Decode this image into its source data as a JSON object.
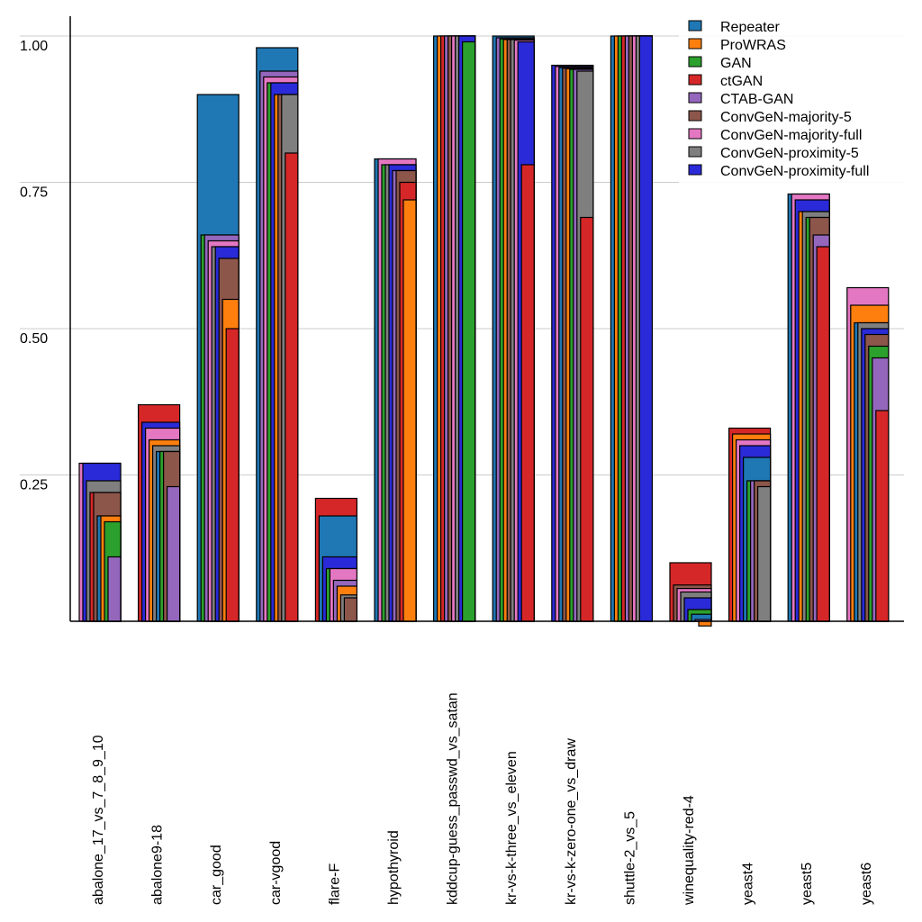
{
  "chart_data": {
    "type": "bar",
    "subtype": "overlapping-sorted",
    "title": "",
    "xlabel": "",
    "ylabel": "",
    "ylim": [
      0,
      1.0
    ],
    "yticks": [
      {
        "value": 0.25,
        "label": "0.25"
      },
      {
        "value": 0.5,
        "label": "0.50"
      },
      {
        "value": 0.75,
        "label": "0.75"
      },
      {
        "value": 1.0,
        "label": "1.00"
      }
    ],
    "grid": "horizontal",
    "legend_position": "top-right",
    "categories": [
      "abalone_17_vs_7_8_9_10",
      "abalone9-18",
      "car_good",
      "car-vgood",
      "flare-F",
      "hypothyroid",
      "kddcup-guess_passwd_vs_satan",
      "kr-vs-k-three_vs_eleven",
      "kr-vs-k-zero-one_vs_draw",
      "shuttle-2_vs_5",
      "winequality-red-4",
      "yeast4",
      "yeast5",
      "yeast6"
    ],
    "series": [
      {
        "name": "Repeater",
        "color": "#1f77b4",
        "values": [
          0.18,
          0.29,
          0.9,
          0.98,
          0.18,
          0.79,
          1.0,
          1.0,
          0.946,
          1.0,
          0.012,
          0.28,
          0.73,
          0.51
        ]
      },
      {
        "name": "ProWRAS",
        "color": "#ff7f0e",
        "values": [
          0.18,
          0.31,
          0.55,
          0.9,
          0.06,
          0.72,
          1.0,
          0.994,
          0.944,
          1.0,
          -0.008,
          0.32,
          0.7,
          0.54
        ]
      },
      {
        "name": "GAN",
        "color": "#2ca02c",
        "values": [
          0.17,
          0.29,
          0.66,
          0.92,
          0.09,
          0.78,
          0.99,
          0.995,
          0.943,
          1.0,
          0.02,
          0.24,
          0.69,
          0.47
        ]
      },
      {
        "name": "ctGAN",
        "color": "#d62728",
        "values": [
          0.22,
          0.37,
          0.5,
          0.8,
          0.21,
          0.75,
          1.0,
          0.78,
          0.69,
          1.0,
          0.1,
          0.33,
          0.64,
          0.36
        ]
      },
      {
        "name": "CTAB-GAN",
        "color": "#9467bd",
        "values": [
          0.11,
          0.23,
          0.66,
          0.94,
          0.07,
          0.77,
          1.0,
          0.997,
          0.943,
          1.0,
          0.003,
          0.24,
          0.66,
          0.45
        ]
      },
      {
        "name": "ConvGeN-majority-5",
        "color": "#8c564b",
        "values": [
          0.22,
          0.29,
          0.62,
          0.9,
          0.04,
          0.77,
          1.0,
          0.994,
          0.945,
          1.0,
          0.062,
          0.24,
          0.69,
          0.49
        ]
      },
      {
        "name": "ConvGeN-majority-full",
        "color": "#e377c2",
        "values": [
          0.27,
          0.33,
          0.65,
          0.93,
          0.09,
          0.79,
          1.0,
          0.993,
          0.948,
          1.0,
          0.056,
          0.31,
          0.73,
          0.57
        ]
      },
      {
        "name": "ConvGeN-proximity-5",
        "color": "#7f7f7f",
        "values": [
          0.24,
          0.3,
          0.64,
          0.9,
          0.045,
          0.78,
          1.0,
          0.994,
          0.94,
          1.0,
          0.05,
          0.23,
          0.7,
          0.51
        ]
      },
      {
        "name": "ConvGeN-proximity-full",
        "color": "#2a2ad8",
        "values": [
          0.27,
          0.34,
          0.64,
          0.92,
          0.11,
          0.78,
          1.0,
          0.99,
          0.95,
          1.0,
          0.04,
          0.3,
          0.72,
          0.5
        ]
      }
    ]
  }
}
